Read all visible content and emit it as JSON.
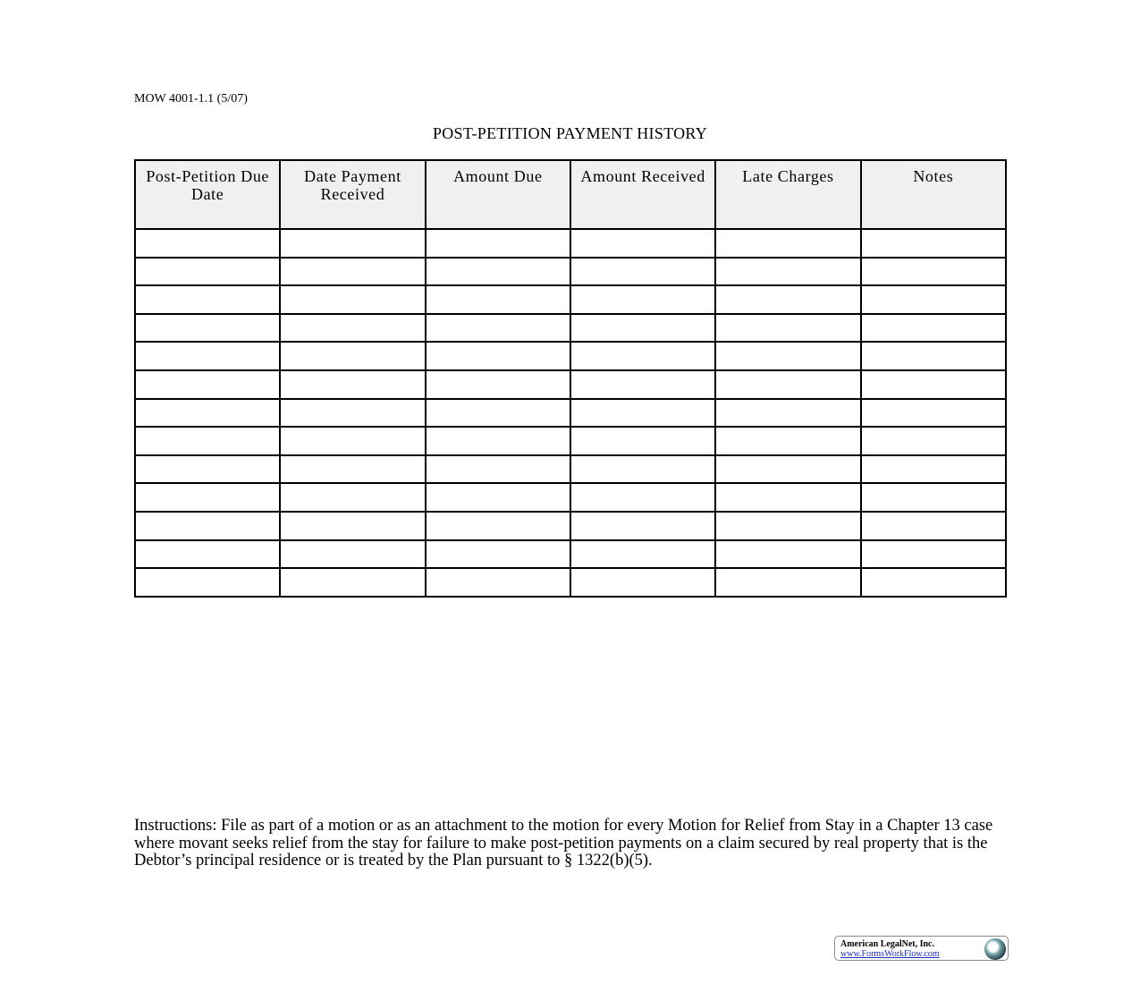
{
  "form_number": "MOW 4001-1.1 (5/07)",
  "title": "POST-PETITION PAYMENT HISTORY",
  "table": {
    "headers": [
      "Post-Petition Due Date",
      "Date Payment Received",
      "Amount Due",
      "Amount Received",
      "Late Charges",
      "Notes"
    ],
    "rows": [
      [
        "",
        "",
        "",
        "",
        "",
        ""
      ],
      [
        "",
        "",
        "",
        "",
        "",
        ""
      ],
      [
        "",
        "",
        "",
        "",
        "",
        ""
      ],
      [
        "",
        "",
        "",
        "",
        "",
        ""
      ],
      [
        "",
        "",
        "",
        "",
        "",
        ""
      ],
      [
        "",
        "",
        "",
        "",
        "",
        ""
      ],
      [
        "",
        "",
        "",
        "",
        "",
        ""
      ],
      [
        "",
        "",
        "",
        "",
        "",
        ""
      ],
      [
        "",
        "",
        "",
        "",
        "",
        ""
      ],
      [
        "",
        "",
        "",
        "",
        "",
        ""
      ],
      [
        "",
        "",
        "",
        "",
        "",
        ""
      ],
      [
        "",
        "",
        "",
        "",
        "",
        ""
      ],
      [
        "",
        "",
        "",
        "",
        "",
        ""
      ]
    ]
  },
  "instructions": "Instructions: File as part of a motion or as an attachment to the motion for every Motion for Relief from Stay in a Chapter 13 case where movant seeks relief from the stay for failure to make post-petition payments on a claim secured by real property that is the Debtor’s principal residence or is treated by the Plan pursuant to § 1322(b)(5).",
  "footer_logo": {
    "name": "American LegalNet, Inc.",
    "url": "www.FormsWorkFlow.com",
    "icon": "globe-icon"
  }
}
